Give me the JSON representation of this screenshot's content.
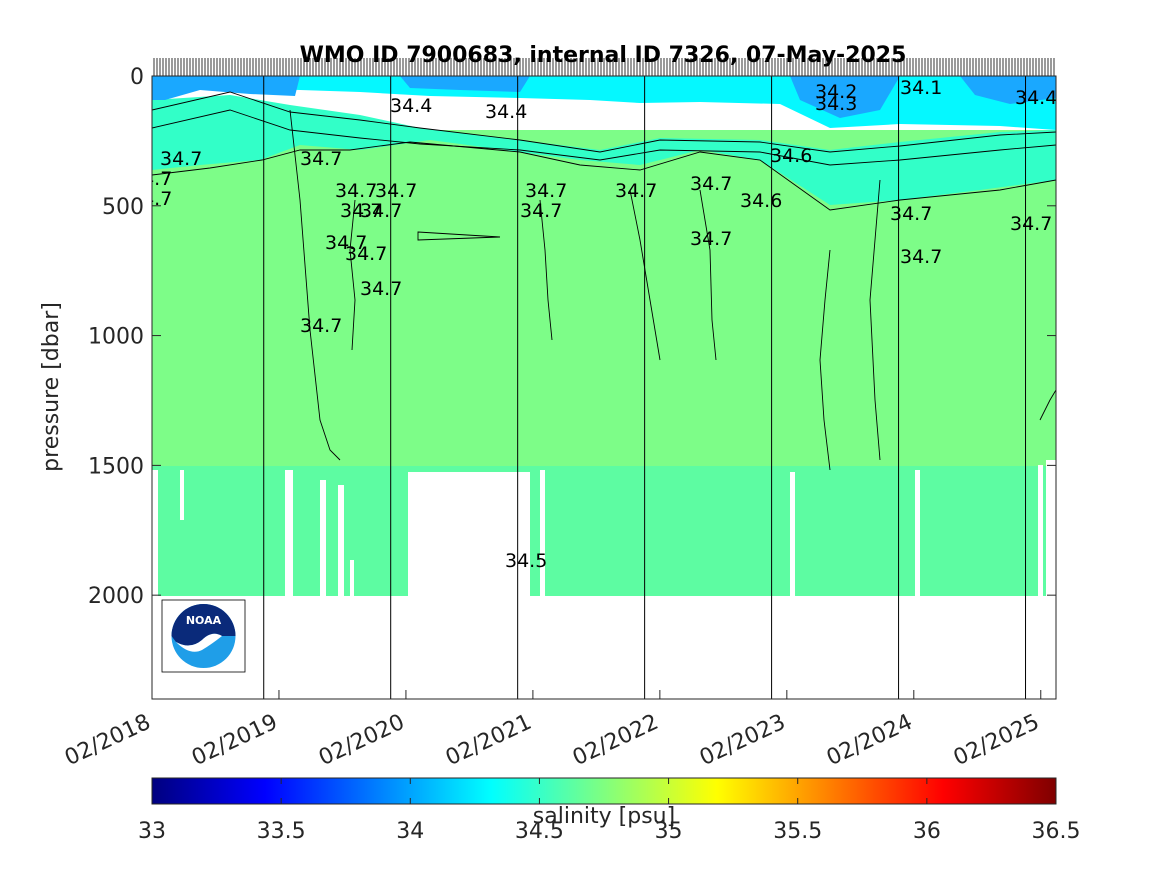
{
  "chart_data": {
    "type": "heatmap",
    "title": "WMO ID 7900683, internal ID 7326, 07-May-2025",
    "ylabel": "pressure [dbar]",
    "xlabel": "",
    "y_ticks": [
      "0",
      "500",
      "1000",
      "1500",
      "2000"
    ],
    "y_tick_values": [
      0,
      500,
      1000,
      1500,
      2000
    ],
    "ylim": [
      0,
      2400
    ],
    "y_reversed": true,
    "x_ticks": [
      "02/2018",
      "02/2019",
      "02/2020",
      "02/2021",
      "02/2022",
      "02/2023",
      "02/2024",
      "02/2025"
    ],
    "x_tick_values": [
      2018.08,
      2019.08,
      2020.08,
      2021.08,
      2022.08,
      2023.08,
      2024.08,
      2025.08
    ],
    "xlim": [
      2018.08,
      2025.2
    ],
    "grid": false,
    "colorbar": {
      "label": "salinity [psu]",
      "ticks": [
        "33",
        "33.5",
        "34",
        "34.5",
        "35",
        "35.5",
        "36",
        "36.5"
      ],
      "tick_values": [
        33,
        33.5,
        34,
        34.5,
        35,
        35.5,
        36,
        36.5
      ],
      "range": [
        33,
        36.5
      ],
      "colormap": "jet"
    },
    "year_markers": [
      2018.96,
      2019.96,
      2020.96,
      2021.96,
      2022.96,
      2023.96,
      2024.96
    ],
    "layers": [
      {
        "pressure_top": 0,
        "pressure_bottom": 100,
        "salinity_approx": 34.4
      },
      {
        "pressure_top": 100,
        "pressure_bottom": 300,
        "salinity_approx": 34.6
      },
      {
        "pressure_top": 300,
        "pressure_bottom": 1500,
        "salinity_approx": 34.7
      },
      {
        "pressure_top": 1500,
        "pressure_bottom": 2000,
        "salinity_approx": 34.65
      }
    ],
    "data_gaps": [
      {
        "x_start": 2020.1,
        "x_end": 2021.04,
        "pressure_top": 1530,
        "pressure_bottom": 2000
      },
      {
        "x_start": 2019.04,
        "x_end": 2019.12,
        "pressure_top": 1520,
        "pressure_bottom": 2000
      },
      {
        "x_start": 2023.05,
        "x_end": 2023.1,
        "pressure_top": 1520,
        "pressure_bottom": 2000
      }
    ],
    "contour_labels": [
      "34.7",
      "34.7",
      "34.7",
      "34.7",
      "34.7",
      "34.7",
      "34.7",
      "34.7",
      "34.7",
      "34.7",
      "34.7",
      "34.7",
      "34.7",
      "34.7",
      "34.7",
      "34.7",
      "34.7",
      "34.7",
      "34.7",
      "34.7",
      "34.4",
      "34.4",
      "34.2",
      "34.1",
      "34.3",
      "34.6",
      "34.4",
      "34.5",
      "34.6"
    ]
  },
  "logo": {
    "name": "NOAA",
    "text": "NOAA"
  }
}
